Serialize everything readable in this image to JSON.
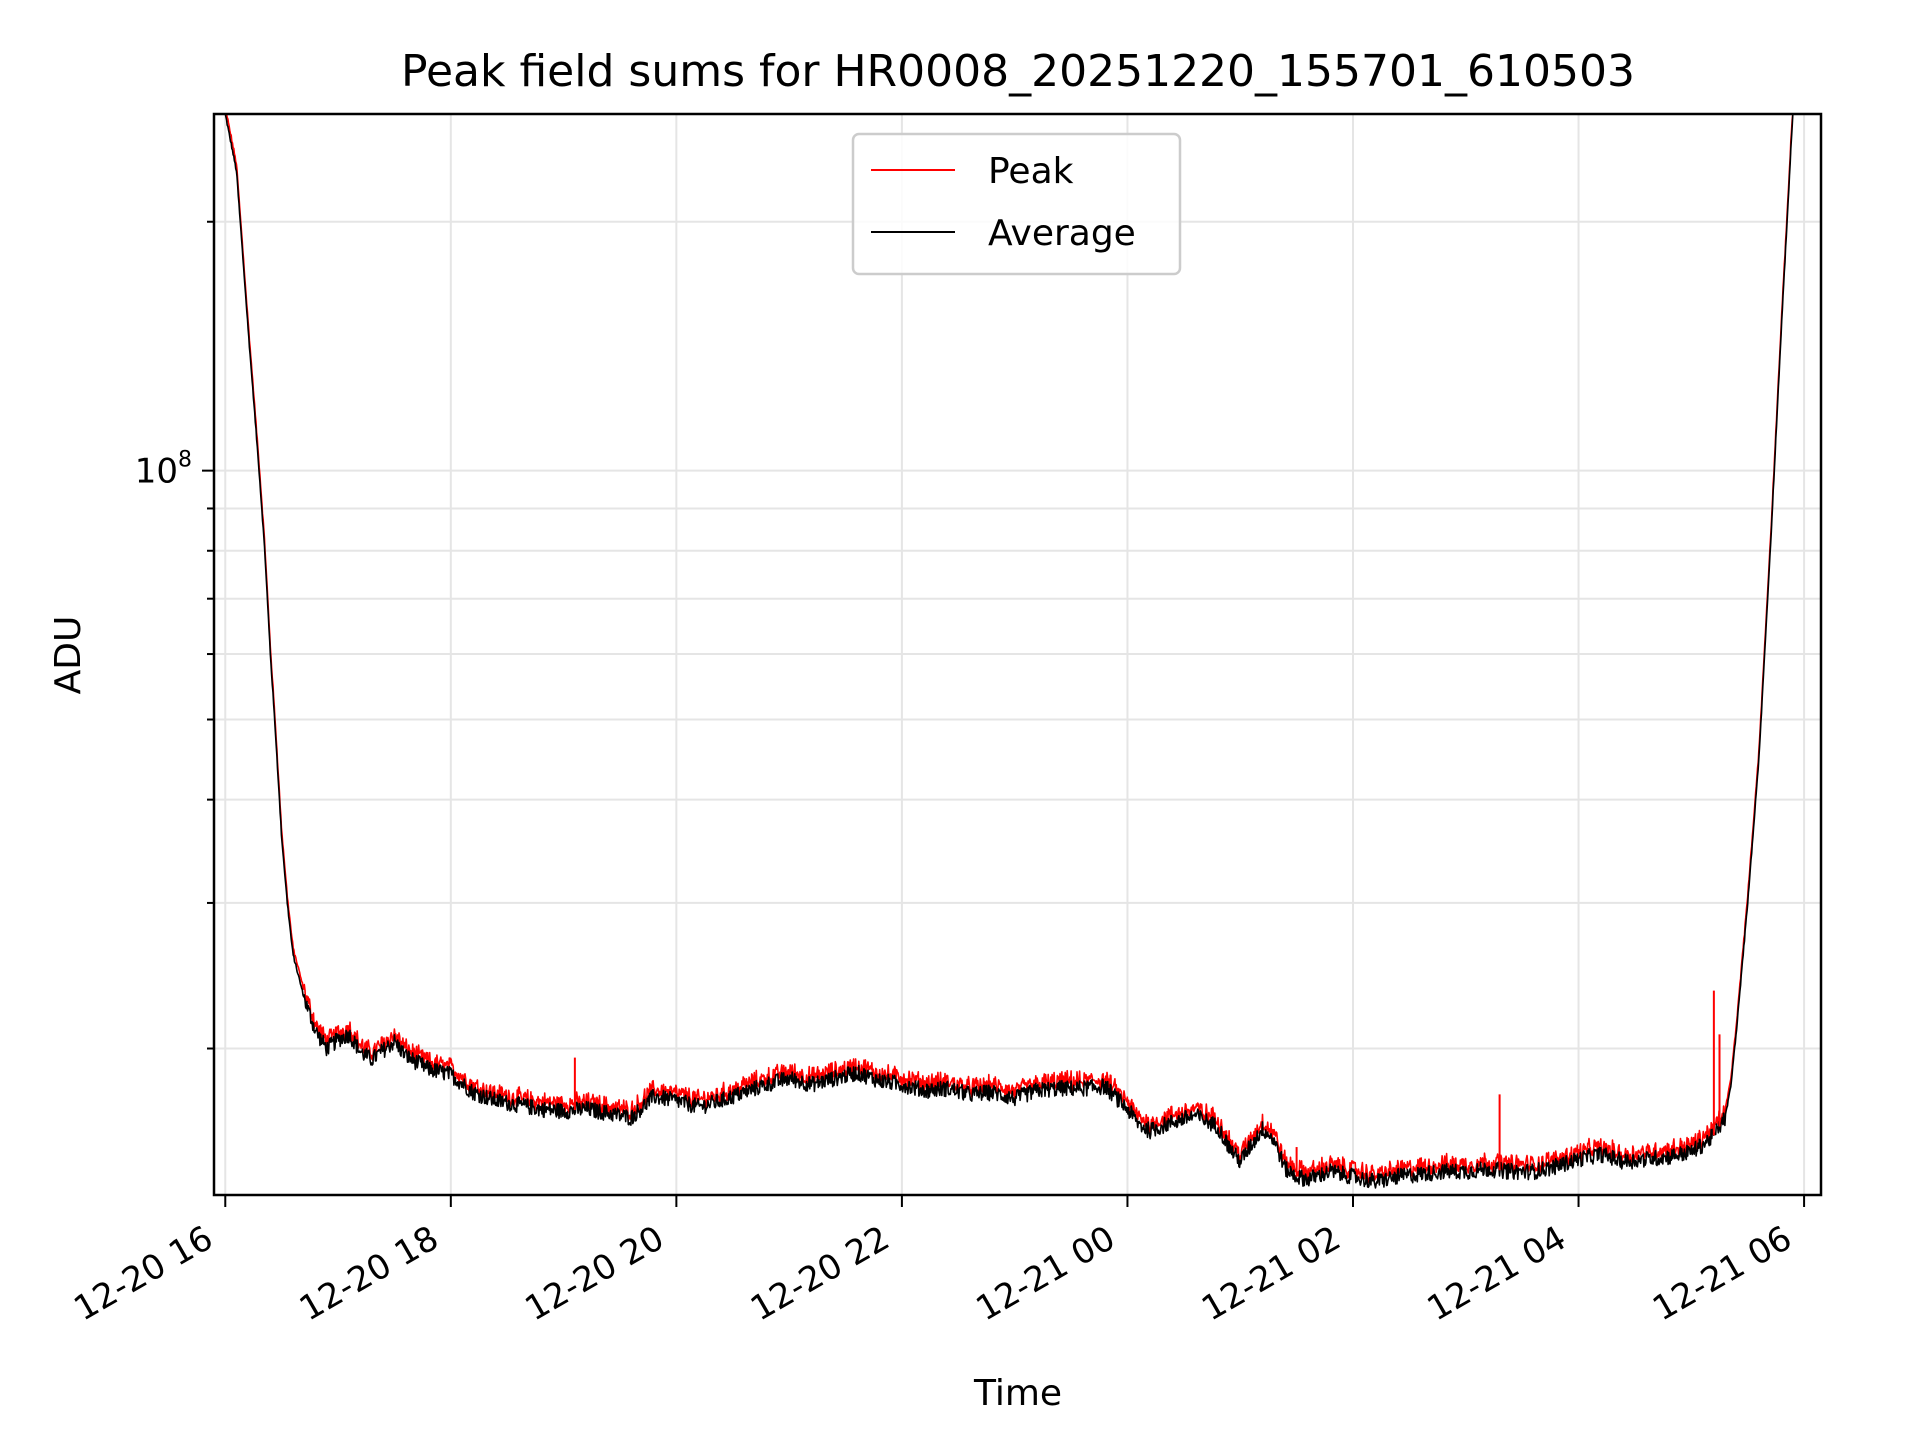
{
  "chart_data": {
    "type": "line",
    "title": "Peak field sums for HR0008_20251220_155701_610503",
    "xlabel": "Time",
    "ylabel": "ADU",
    "yscale": "log",
    "xlim_hours": [
      15.9,
      30.15
    ],
    "ylim": [
      13300000,
      270000000
    ],
    "x_ticks": [
      {
        "hour": 16,
        "label": "12-20 16"
      },
      {
        "hour": 18,
        "label": "12-20 18"
      },
      {
        "hour": 20,
        "label": "12-20 20"
      },
      {
        "hour": 22,
        "label": "12-20 22"
      },
      {
        "hour": 24,
        "label": "12-21 00"
      },
      {
        "hour": 26,
        "label": "12-21 02"
      },
      {
        "hour": 28,
        "label": "12-21 04"
      },
      {
        "hour": 30,
        "label": "12-21 06"
      }
    ],
    "y_major_ticks": [
      {
        "value": 100000000,
        "base": "10",
        "exp": "8"
      }
    ],
    "y_minor_ticks": [
      20000000,
      30000000,
      40000000,
      50000000,
      60000000,
      70000000,
      80000000,
      90000000,
      200000000
    ],
    "grid": true,
    "legend": {
      "location": "upper center",
      "entries": [
        "Peak",
        "Average"
      ]
    },
    "series": [
      {
        "name": "Average",
        "color": "#000000",
        "points_hours_adu": [
          [
            16.0,
            270000000
          ],
          [
            16.1,
            230000000
          ],
          [
            16.2,
            150000000
          ],
          [
            16.3,
            100000000
          ],
          [
            16.35,
            80000000
          ],
          [
            16.4,
            60000000
          ],
          [
            16.45,
            47000000
          ],
          [
            16.5,
            36000000
          ],
          [
            16.55,
            30000000
          ],
          [
            16.6,
            26000000
          ],
          [
            16.7,
            23000000
          ],
          [
            16.8,
            21000000
          ],
          [
            16.9,
            20000000
          ],
          [
            17.0,
            20500000
          ],
          [
            17.1,
            20800000
          ],
          [
            17.2,
            19800000
          ],
          [
            17.3,
            19400000
          ],
          [
            17.4,
            19900000
          ],
          [
            17.5,
            20400000
          ],
          [
            17.6,
            19600000
          ],
          [
            17.8,
            18900000
          ],
          [
            18.0,
            18600000
          ],
          [
            18.2,
            17700000
          ],
          [
            18.4,
            17300000
          ],
          [
            18.6,
            17100000
          ],
          [
            18.8,
            16900000
          ],
          [
            19.0,
            16800000
          ],
          [
            19.2,
            16900000
          ],
          [
            19.4,
            16700000
          ],
          [
            19.6,
            16500000
          ],
          [
            19.8,
            17500000
          ],
          [
            20.0,
            17300000
          ],
          [
            20.2,
            17000000
          ],
          [
            20.4,
            17300000
          ],
          [
            20.6,
            17700000
          ],
          [
            20.8,
            18100000
          ],
          [
            21.0,
            18400000
          ],
          [
            21.2,
            18100000
          ],
          [
            21.4,
            18400000
          ],
          [
            21.6,
            18700000
          ],
          [
            21.8,
            18300000
          ],
          [
            22.0,
            18100000
          ],
          [
            22.2,
            17800000
          ],
          [
            22.4,
            17900000
          ],
          [
            22.6,
            17600000
          ],
          [
            22.8,
            17700000
          ],
          [
            23.0,
            17400000
          ],
          [
            23.2,
            17800000
          ],
          [
            23.4,
            17900000
          ],
          [
            23.6,
            17900000
          ],
          [
            23.8,
            18000000
          ],
          [
            24.0,
            16900000
          ],
          [
            24.1,
            16200000
          ],
          [
            24.2,
            15900000
          ],
          [
            24.4,
            16300000
          ],
          [
            24.6,
            16600000
          ],
          [
            24.8,
            16100000
          ],
          [
            24.9,
            15200000
          ],
          [
            25.0,
            14600000
          ],
          [
            25.1,
            15300000
          ],
          [
            25.2,
            16000000
          ],
          [
            25.3,
            15500000
          ],
          [
            25.4,
            14300000
          ],
          [
            25.5,
            14000000
          ],
          [
            25.6,
            13900000
          ],
          [
            25.8,
            14200000
          ],
          [
            26.0,
            14000000
          ],
          [
            26.2,
            13800000
          ],
          [
            26.4,
            14000000
          ],
          [
            26.6,
            14100000
          ],
          [
            26.8,
            14200000
          ],
          [
            27.0,
            14200000
          ],
          [
            27.2,
            14300000
          ],
          [
            27.4,
            14200000
          ],
          [
            27.6,
            14200000
          ],
          [
            27.8,
            14400000
          ],
          [
            28.0,
            14700000
          ],
          [
            28.2,
            14900000
          ],
          [
            28.4,
            14600000
          ],
          [
            28.6,
            14700000
          ],
          [
            28.8,
            14800000
          ],
          [
            29.0,
            15000000
          ],
          [
            29.1,
            15300000
          ],
          [
            29.2,
            15700000
          ],
          [
            29.3,
            16500000
          ],
          [
            29.35,
            18000000
          ],
          [
            29.4,
            21000000
          ],
          [
            29.5,
            30000000
          ],
          [
            29.6,
            45000000
          ],
          [
            29.7,
            80000000
          ],
          [
            29.8,
            150000000
          ],
          [
            29.9,
            270000000
          ]
        ]
      },
      {
        "name": "Peak",
        "color": "#ff0000",
        "offset_ratio": 1.02,
        "spikes_hours_adu": [
          [
            19.1,
            19500000
          ],
          [
            25.5,
            15200000
          ],
          [
            27.3,
            17600000
          ],
          [
            29.2,
            23500000
          ],
          [
            29.25,
            20800000
          ]
        ]
      }
    ]
  }
}
